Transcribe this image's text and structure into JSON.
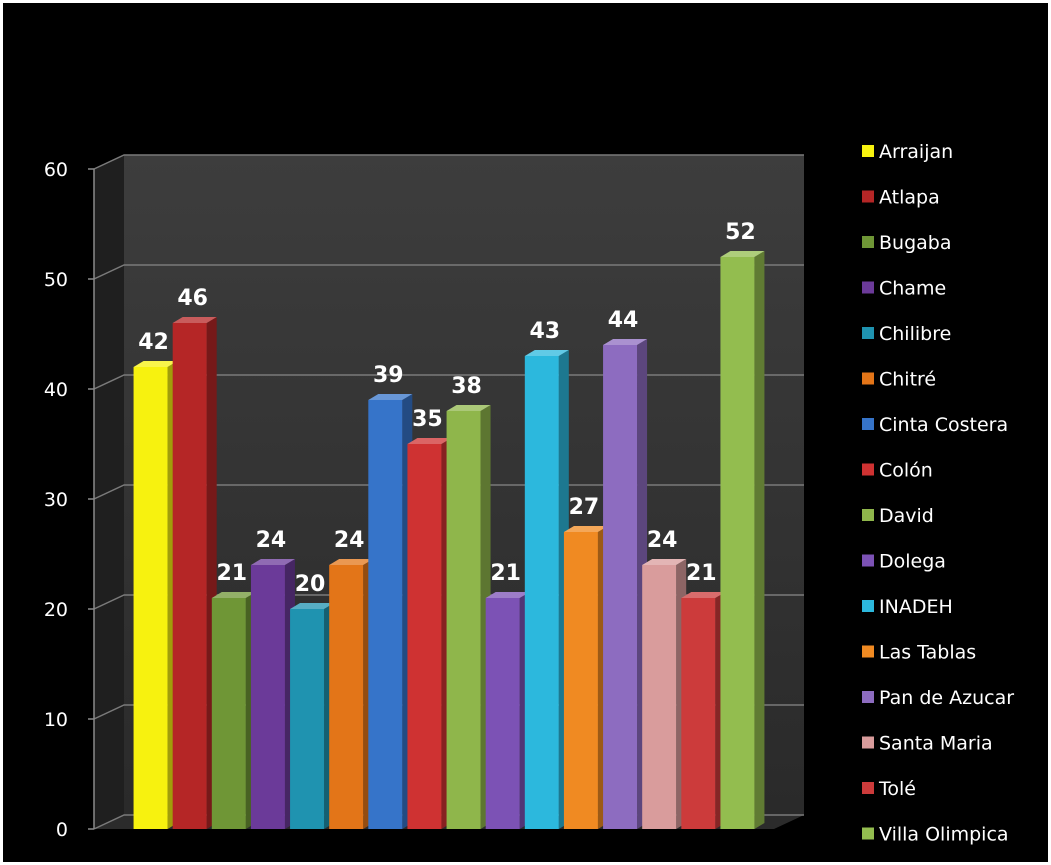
{
  "chart_data": {
    "type": "bar",
    "title": "",
    "xlabel": "",
    "ylabel": "",
    "ylim": [
      0,
      60
    ],
    "yticks": [
      0,
      10,
      20,
      30,
      40,
      50,
      60
    ],
    "grid": true,
    "legend_position": "right",
    "series": [
      {
        "name": "Arraijan",
        "value": 42,
        "color": "#f7f20f"
      },
      {
        "name": "Atlapa",
        "value": 46,
        "color": "#b52626"
      },
      {
        "name": "Bugaba",
        "value": 21,
        "color": "#6f9636"
      },
      {
        "name": "Chame",
        "value": 24,
        "color": "#6b3a99"
      },
      {
        "name": "Chilibre",
        "value": 20,
        "color": "#1f93b0"
      },
      {
        "name": "Chitré",
        "value": 24,
        "color": "#e37518"
      },
      {
        "name": "Cinta Costera",
        "value": 39,
        "color": "#3674c9"
      },
      {
        "name": "Colón",
        "value": 35,
        "color": "#cf3232"
      },
      {
        "name": "David",
        "value": 38,
        "color": "#8fb64b"
      },
      {
        "name": "Dolega",
        "value": 21,
        "color": "#7c52b5"
      },
      {
        "name": "INADEH",
        "value": 43,
        "color": "#2cb8dd"
      },
      {
        "name": "Las Tablas",
        "value": 27,
        "color": "#f08a22"
      },
      {
        "name": "Pan de Azucar",
        "value": 44,
        "color": "#8d6cc0"
      },
      {
        "name": "Santa Maria",
        "value": 24,
        "color": "#d99c9c"
      },
      {
        "name": "Tolé",
        "value": 21,
        "color": "#cc3b3b"
      },
      {
        "name": "Villa Olimpica",
        "value": 52,
        "color": "#93bd4f"
      }
    ]
  }
}
